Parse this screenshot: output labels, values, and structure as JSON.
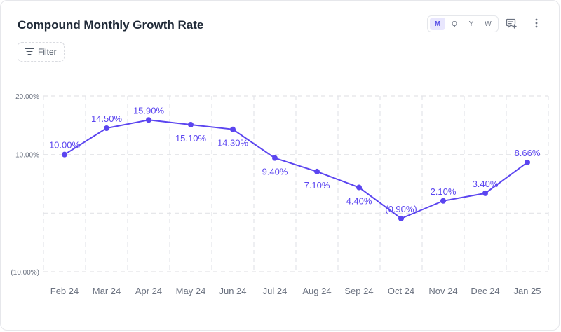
{
  "card": {
    "title": "Compound Monthly Growth Rate",
    "filter_label": "Filter",
    "period_options": [
      "M",
      "Q",
      "Y",
      "W"
    ],
    "selected_period": "M",
    "icons": [
      "add-comment-icon",
      "more-vertical-icon",
      "filter-icon"
    ]
  },
  "colors": {
    "series": "#5b45f0",
    "axis_text": "#6b7280",
    "grid": "#e3e4e8",
    "title": "#1f2937"
  },
  "chart_data": {
    "type": "line",
    "title": "Compound Monthly Growth Rate",
    "xlabel": "",
    "ylabel": "",
    "categories": [
      "Feb 24",
      "Mar 24",
      "Apr 24",
      "May 24",
      "Jun 24",
      "Jul 24",
      "Aug 24",
      "Sep 24",
      "Oct 24",
      "Nov 24",
      "Dec 24",
      "Jan 25"
    ],
    "series": [
      {
        "values": [
          10.0,
          14.5,
          15.9,
          15.1,
          14.3,
          9.4,
          7.1,
          4.4,
          -0.9,
          2.1,
          3.4,
          8.66
        ],
        "labels": [
          "10.00%",
          "14.50%",
          "15.90%",
          "15.10%",
          "14.30%",
          "9.40%",
          "7.10%",
          "4.40%",
          "(0.90%)",
          "2.10%",
          "3.40%",
          "8.66%"
        ]
      }
    ],
    "y_ticks": [
      20,
      10,
      0,
      -10
    ],
    "y_tick_labels": [
      "20.00%",
      "10.00%",
      "-",
      "(10.00%)"
    ],
    "ylim": [
      -10,
      20
    ],
    "grid": true,
    "grid_style": "dashed",
    "legend": "none"
  }
}
